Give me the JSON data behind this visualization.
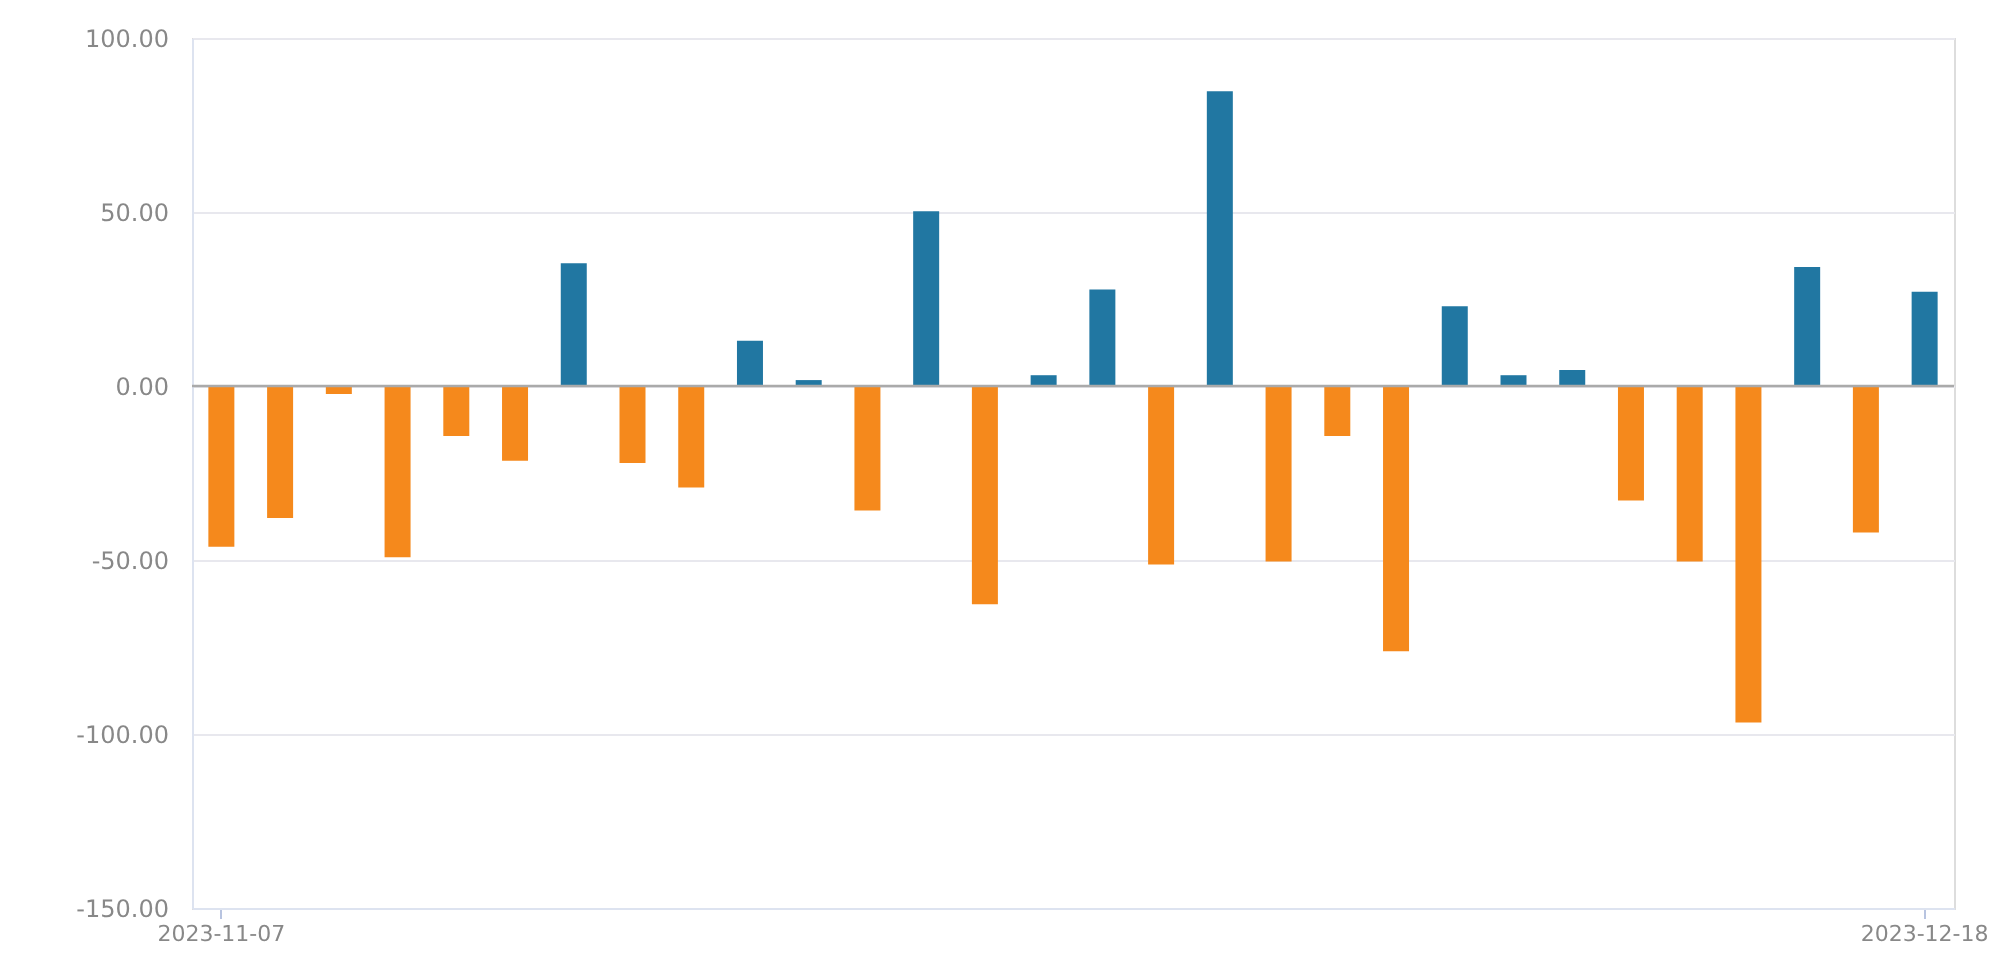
{
  "chart_data": {
    "type": "bar",
    "categories": [
      "2023-11-07",
      null,
      null,
      null,
      null,
      null,
      null,
      null,
      null,
      null,
      null,
      null,
      null,
      null,
      null,
      null,
      null,
      null,
      null,
      null,
      null,
      null,
      null,
      null,
      null,
      null,
      null,
      null,
      null,
      "2023-12-18"
    ],
    "values": [
      -46.2,
      -37.9,
      -2.3,
      -49.2,
      -14.4,
      -21.5,
      35.3,
      -22.1,
      -29.2,
      13,
      1.7,
      -35.8,
      50.2,
      -62.7,
      3.1,
      27.7,
      -51.3,
      84.7,
      -50.4,
      -14.4,
      -76.2,
      22.9,
      3.1,
      4.6,
      -32.9,
      -50.4,
      -96.7,
      34.2,
      -42.1,
      27.1
    ],
    "colors": [
      "#f5891c",
      "#f5891c",
      "#f5891c",
      "#f5891c",
      "#f5891c",
      "#f5891c",
      "#2177a2",
      "#f5891c",
      "#f5891c",
      "#2177a2",
      "#2177a2",
      "#f5891c",
      "#2177a2",
      "#f5891c",
      "#2177a2",
      "#2177a2",
      "#f5891c",
      "#2177a2",
      "#f5891c",
      "#f5891c",
      "#f5891c",
      "#2177a2",
      "#2177a2",
      "#2177a2",
      "#f5891c",
      "#f5891c",
      "#f5891c",
      "#2177a2",
      "#f5891c",
      "#2177a2"
    ],
    "ylim": [
      -150,
      100
    ],
    "yticks": [
      {
        "value": -150,
        "label": "-150.00"
      },
      {
        "value": -100,
        "label": "-100.00"
      },
      {
        "value": -50,
        "label": "-50.00"
      },
      {
        "value": 0,
        "label": "0.00"
      },
      {
        "value": 50,
        "label": "50.00"
      },
      {
        "value": 100,
        "label": "100.00"
      }
    ],
    "grid": "y",
    "legend": false
  }
}
